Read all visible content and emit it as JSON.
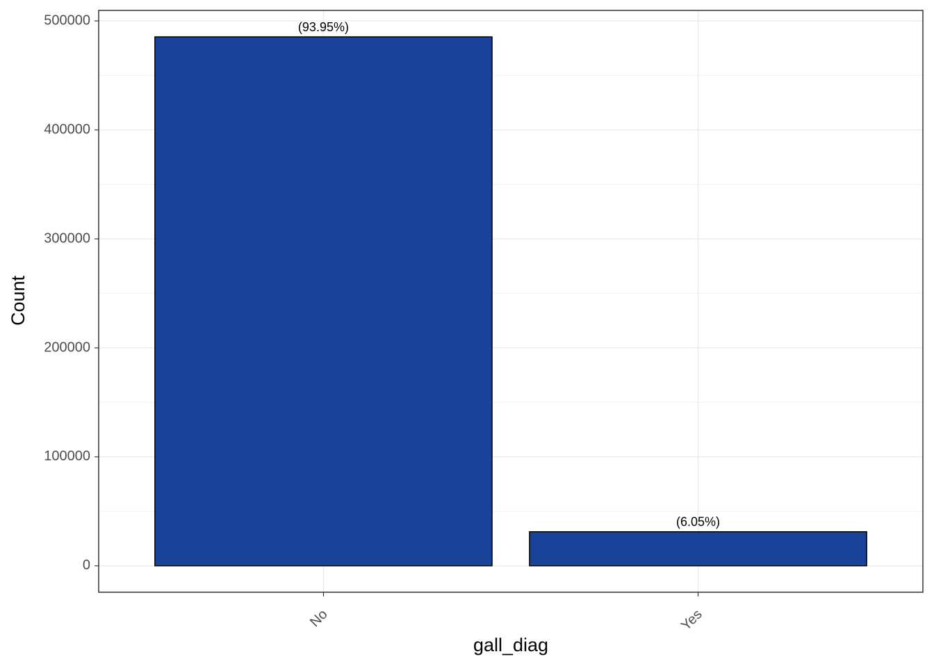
{
  "chart_data": {
    "type": "bar",
    "x_label": "gall_diag",
    "y_label": "Count",
    "categories": [
      "No",
      "Yes"
    ],
    "values": [
      485350,
      31250
    ],
    "bar_labels": [
      "(93.95%)",
      "(6.05%)"
    ],
    "color": "#19439a",
    "edge_color": "#000000",
    "ylim": [
      -24268,
      509618
    ],
    "yticks": [
      0,
      100000,
      200000,
      300000,
      400000,
      500000
    ],
    "grid": true
  }
}
